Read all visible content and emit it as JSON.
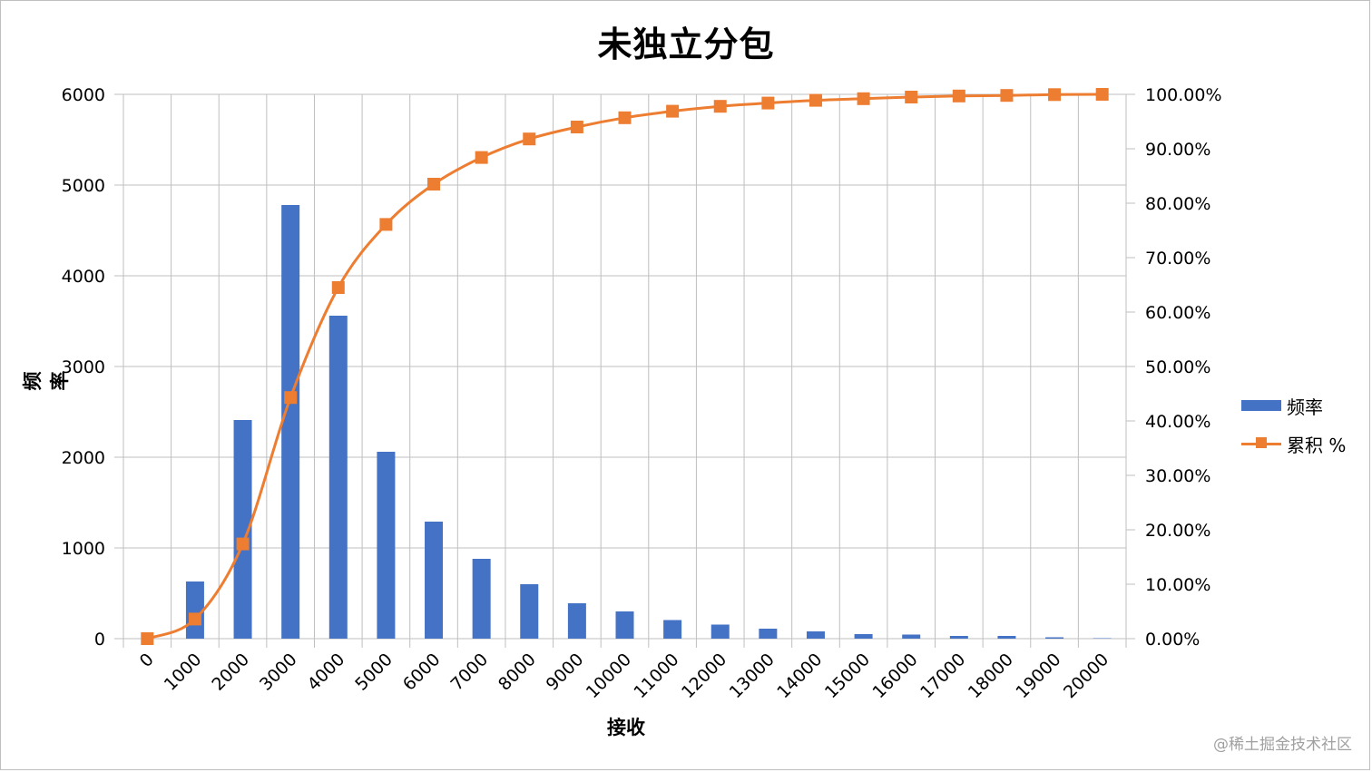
{
  "title": "未独立分包",
  "watermark": "@稀土掘金技术社区",
  "colors": {
    "bar": "#4472c4",
    "line": "#ed7d31",
    "grid": "#bfbfbf"
  },
  "chart_data": {
    "type": "bar",
    "title": "未独立分包",
    "xlabel": "接收",
    "ylabel": "频率",
    "categories": [
      "0",
      "1000",
      "2000",
      "3000",
      "4000",
      "5000",
      "6000",
      "7000",
      "8000",
      "9000",
      "10000",
      "11000",
      "12000",
      "13000",
      "14000",
      "15000",
      "16000",
      "17000",
      "18000",
      "19000",
      "20000"
    ],
    "ylim": [
      0,
      6000
    ],
    "y_ticks": [
      "0",
      "1000",
      "2000",
      "3000",
      "4000",
      "5000",
      "6000"
    ],
    "y2lim": [
      0,
      100
    ],
    "y2_ticks": [
      "0.00%",
      "10.00%",
      "20.00%",
      "30.00%",
      "40.00%",
      "50.00%",
      "60.00%",
      "70.00%",
      "80.00%",
      "90.00%",
      "100.00%"
    ],
    "grid": true,
    "legend_position": "right",
    "series": [
      {
        "name": "频率",
        "type": "bar",
        "axis": "left",
        "values": [
          0,
          630,
          2410,
          4780,
          3560,
          2060,
          1290,
          880,
          600,
          390,
          300,
          205,
          155,
          110,
          80,
          50,
          45,
          30,
          30,
          15,
          5
        ]
      },
      {
        "name": "累积 %",
        "type": "line",
        "axis": "right",
        "values": [
          0,
          3.6,
          17.4,
          44.3,
          64.5,
          76.1,
          83.5,
          88.4,
          91.8,
          94.0,
          95.7,
          96.9,
          97.8,
          98.4,
          98.9,
          99.2,
          99.5,
          99.7,
          99.8,
          99.95,
          100
        ]
      }
    ]
  }
}
